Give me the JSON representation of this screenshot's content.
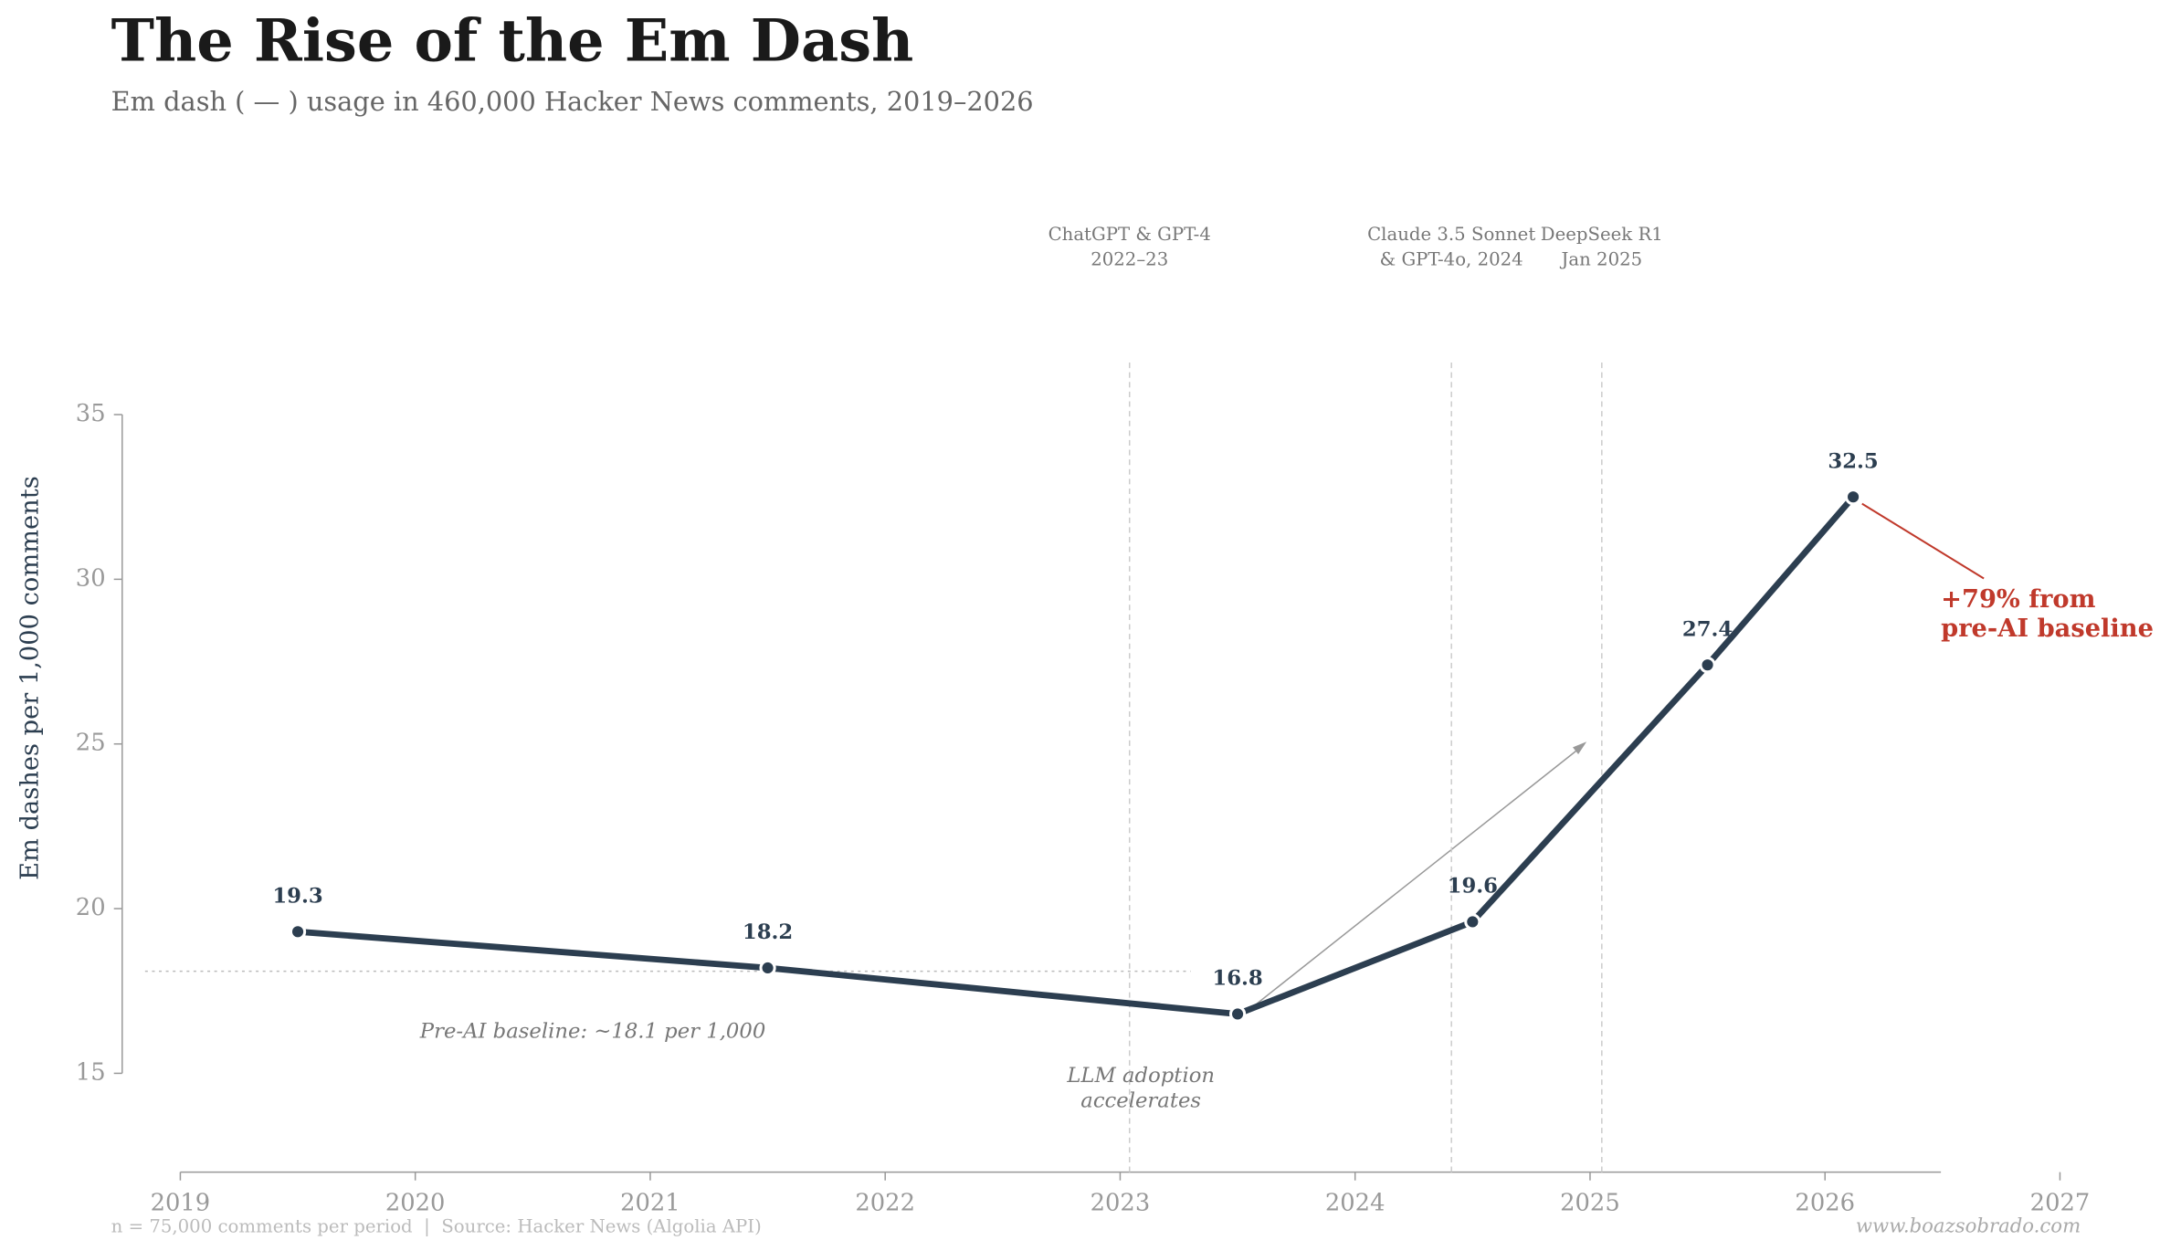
{
  "chart_data": {
    "type": "line",
    "title": "The Rise of the Em Dash",
    "subtitle": "Em dash ( — ) usage in 460,000 Hacker News comments, 2019–2026",
    "y_label": "Em dashes per 1,000 comments",
    "x": [
      2019.5,
      2021.5,
      2023.5,
      2024.5,
      2025.5,
      2026.12
    ],
    "values": [
      19.3,
      18.2,
      16.8,
      19.6,
      27.4,
      32.5
    ],
    "color": "#2c3e50",
    "xlim": [
      2019,
      2027
    ],
    "xticks": [
      2019,
      2020,
      2021,
      2022,
      2023,
      2024,
      2025,
      2026,
      2027
    ],
    "ylim": [
      12,
      37
    ],
    "yticks": [
      15,
      20,
      25,
      30,
      35
    ],
    "events": [
      {
        "x": 2023.04,
        "label": [
          "ChatGPT & GPT-4",
          "2022–23"
        ]
      },
      {
        "x": 2024.41,
        "label": [
          "Claude 3.5 Sonnet",
          "& GPT-4o, 2024"
        ]
      },
      {
        "x": 2025.05,
        "label": [
          "DeepSeek R1",
          "Jan 2025"
        ]
      }
    ],
    "baseline": {
      "value": 18.1,
      "x": [
        2018.85,
        2023.3
      ],
      "label": "Pre-AI baseline: ~18.1 per 1,000"
    },
    "annotations": {
      "arrow": [
        "LLM adoption",
        "accelerates"
      ],
      "change": [
        "+79% from",
        "pre-AI baseline"
      ],
      "change_color": "#c0392b"
    },
    "footnote": "n = 75,000 comments per period  |  Source: Hacker News (Algolia API)",
    "credit": "www.boazsobrado.com"
  }
}
